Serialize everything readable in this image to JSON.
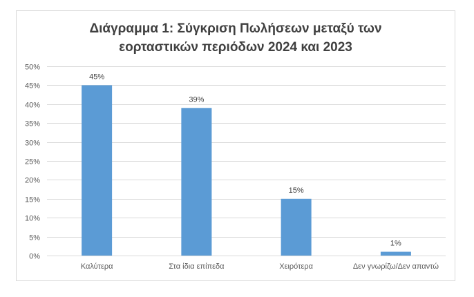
{
  "chart_data": {
    "type": "bar",
    "title": "Διάγραμμα 1: Σύγκριση Πωλήσεων μεταξύ των εορταστικών περιόδων 2024 και 2023",
    "title_lines": [
      "Διάγραμμα 1: Σύγκριση Πωλήσεων μεταξύ των",
      "εορταστικών περιόδων 2024 και 2023"
    ],
    "categories": [
      "Καλύτερα",
      "Στα ίδια επίπεδα",
      "Χειρότερα",
      "Δεν γνωρίζω/Δεν απαντώ"
    ],
    "values": [
      45,
      39,
      15,
      1
    ],
    "data_labels": [
      "45%",
      "39%",
      "15%",
      "1%"
    ],
    "ylim": [
      0,
      50
    ],
    "y_ticks": [
      0,
      5,
      10,
      15,
      20,
      25,
      30,
      35,
      40,
      45,
      50
    ],
    "y_tick_labels": [
      "0%",
      "5%",
      "10%",
      "15%",
      "20%",
      "25%",
      "30%",
      "35%",
      "40%",
      "45%",
      "50%"
    ],
    "xlabel": "",
    "ylabel": "",
    "grid": true,
    "legend": "none",
    "colors": {
      "bar": "#5b9bd5",
      "grid": "#d9d9d9",
      "axis_text": "#595959",
      "title": "#404040"
    }
  }
}
